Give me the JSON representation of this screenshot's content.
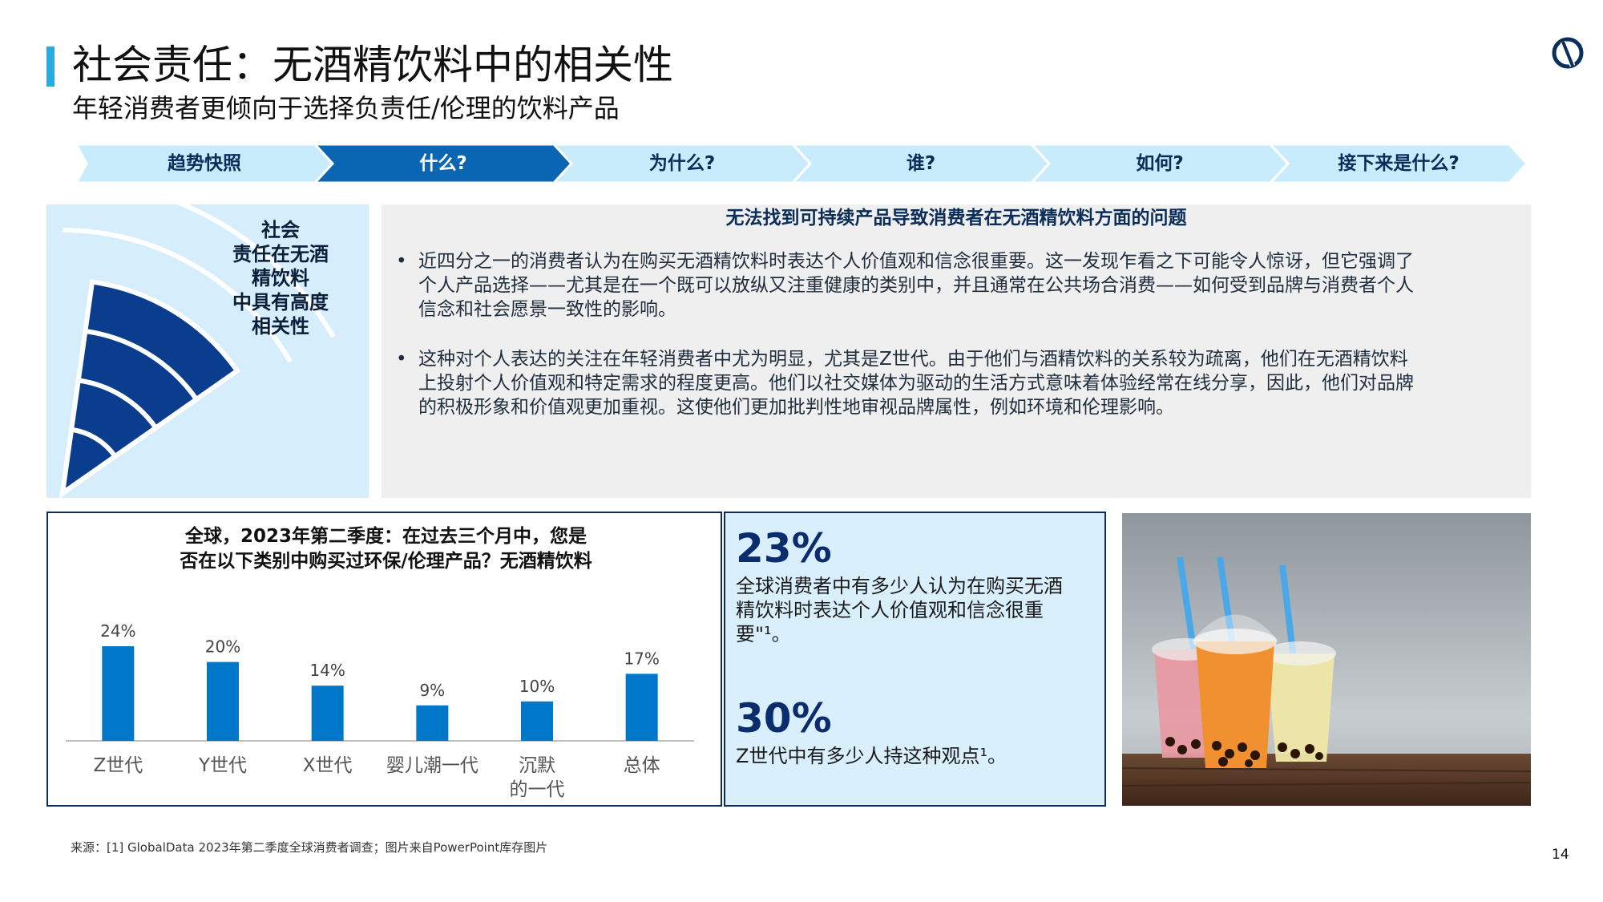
{
  "header": {
    "title": "社会责任：无酒精饮料中的相关性",
    "subtitle": "年轻消费者更倾向于选择负责任/伦理的饮料产品"
  },
  "logo": {
    "icon": "brand-logo-icon",
    "color": "#0b2d59"
  },
  "nav": {
    "steps": [
      "趋势快照",
      "什么?",
      "为什么?",
      "谁?",
      "如何?",
      "接下来是什么?"
    ],
    "active_index": 1
  },
  "relevance": {
    "label_lines": [
      "社会",
      "责任在无酒",
      "精饮料",
      "中具有高度",
      "相关性"
    ],
    "level_filled": 4,
    "level_total": 6
  },
  "insight": {
    "heading": "无法找到可持续产品导致消费者在无酒精饮料方面的问题",
    "bullets": [
      {
        "lines": [
          "近四分之一的消费者认为在购买无酒精饮料时表达个人价值观和信念很重要。这一发现乍看之下可能令人惊讶，但它强调了",
          "个人产品选择——尤其是在一个既可以放纵又注重健康的类别中，并且通常在公共场合消费——如何受到品牌与消费者个人",
          "信念和社会愿景一致性的影响。"
        ]
      },
      {
        "lines": [
          "这种对个人表达的关注在年轻消费者中尤为明显，尤其是Z世代。由于他们与酒精饮料的关系较为疏离，他们在无酒精饮料",
          "上投射个人价值观和特定需求的程度更高。他们以社交媒体为驱动的生活方式意味着体验经常在线分享，因此，他们对品牌",
          "的积极形象和价值观更加重视。这使他们更加批判性地审视品牌属性，例如环境和伦理影响。"
        ]
      }
    ]
  },
  "chart_panel": {
    "title_lines": [
      "全球，2023年第二季度：在过去三个月中，您是",
      "否在以下类别中购买过环保/伦理产品？无酒精饮料"
    ]
  },
  "chart_data": {
    "type": "bar",
    "categories": [
      "Z世代",
      "Y世代",
      "X世代",
      "婴儿潮一代",
      "沉默的一代",
      "总体"
    ],
    "category_lines": [
      [
        "Z世代"
      ],
      [
        "Y世代"
      ],
      [
        "X世代"
      ],
      [
        "婴儿潮一代"
      ],
      [
        "沉默",
        "的一代"
      ],
      [
        "总体"
      ]
    ],
    "values": [
      24,
      20,
      14,
      9,
      10,
      17
    ],
    "value_labels": [
      "24%",
      "20%",
      "14%",
      "9%",
      "10%",
      "17%"
    ],
    "ylim": [
      0,
      24
    ],
    "bar_color": "#0077c8",
    "grid": false
  },
  "stats": [
    {
      "value": "23%",
      "lines": [
        "全球消费者中有多少人认为在购买无酒",
        "精饮料时表达个人价值观和信念很重",
        "要\"¹。"
      ]
    },
    {
      "value": "30%",
      "lines": [
        "Z世代中有多少人持这种观点¹。"
      ]
    }
  ],
  "footer": {
    "source": "来源：[1] GlobalData 2023年第二季度全球消费者调查；图片来自PowerPoint库存图片",
    "page_number": "14"
  },
  "colors": {
    "accent": "#29abe2",
    "navy": "#0b2d59",
    "chevron_light": "#c8ecfb",
    "chevron_active": "#0a66b2",
    "panel_light": "#d9f0fc",
    "bar": "#0077c8"
  }
}
